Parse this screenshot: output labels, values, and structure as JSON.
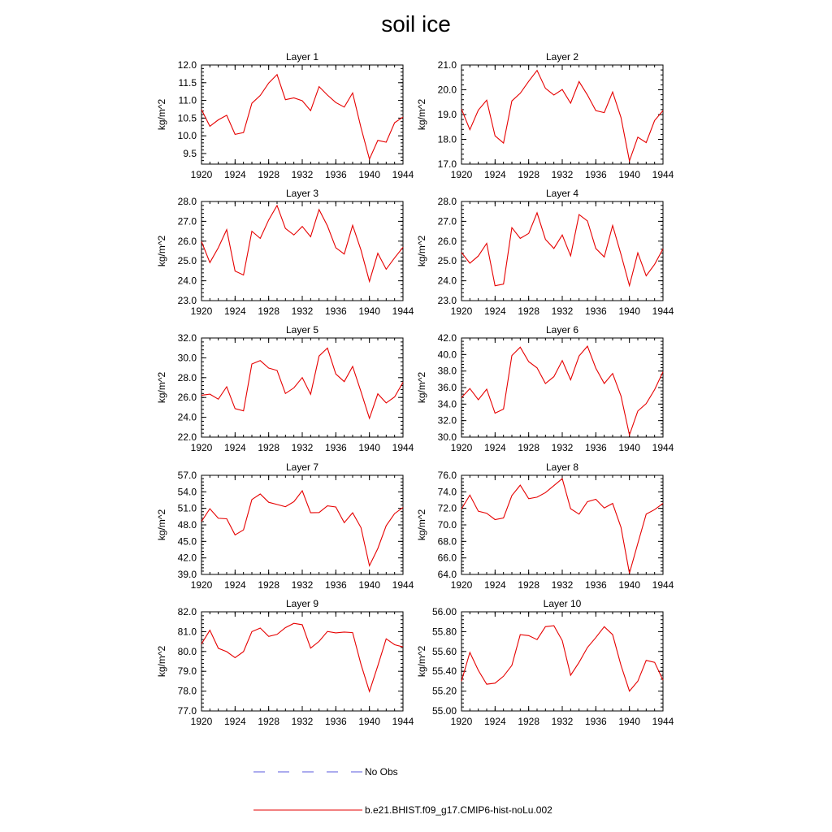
{
  "title": "soil ice",
  "legend": {
    "items": [
      {
        "label": "No Obs",
        "color": "#5a5adc",
        "style": "dashed"
      },
      {
        "label": "b.e21.BHIST.f09_g17.CMIP6-hist-noLu.002",
        "color": "#e60000",
        "style": "solid"
      }
    ]
  },
  "chart_data": [
    {
      "type": "line",
      "title": "Layer 1",
      "xlabel": "",
      "ylabel": "kg/m^2",
      "xlim": [
        1920,
        1944
      ],
      "ylim": [
        9.2,
        12.0
      ],
      "xticks": [
        "1920",
        "1924",
        "1928",
        "1932",
        "1936",
        "1940",
        "1944"
      ],
      "yticks": [
        "9.5",
        "10.0",
        "10.5",
        "11.0",
        "11.5",
        "12.0"
      ],
      "x": [
        1920,
        1921,
        1922,
        1923,
        1924,
        1925,
        1926,
        1927,
        1928,
        1929,
        1930,
        1931,
        1932,
        1933,
        1934,
        1935,
        1936,
        1937,
        1938,
        1939,
        1940,
        1941,
        1942,
        1943,
        1944
      ],
      "series": [
        {
          "name": "b.e21.BHIST.f09_g17.CMIP6-hist-noLu.002",
          "color": "#e60000",
          "values": [
            10.74,
            10.27,
            10.45,
            10.58,
            10.04,
            10.09,
            10.92,
            11.14,
            11.49,
            11.73,
            11.02,
            11.07,
            10.99,
            10.71,
            11.39,
            11.15,
            10.94,
            10.81,
            11.21,
            10.23,
            9.34,
            9.87,
            9.82,
            10.37,
            10.53
          ]
        }
      ]
    },
    {
      "type": "line",
      "title": "Layer 2",
      "xlabel": "",
      "ylabel": "kg/m^2",
      "xlim": [
        1920,
        1944
      ],
      "ylim": [
        17.0,
        21.0
      ],
      "xticks": [
        "1920",
        "1924",
        "1928",
        "1932",
        "1936",
        "1940",
        "1944"
      ],
      "yticks": [
        "17.0",
        "18.0",
        "19.0",
        "20.0",
        "21.0"
      ],
      "x": [
        1920,
        1921,
        1922,
        1923,
        1924,
        1925,
        1926,
        1927,
        1928,
        1929,
        1930,
        1931,
        1932,
        1933,
        1934,
        1935,
        1936,
        1937,
        1938,
        1939,
        1940,
        1941,
        1942,
        1943,
        1944
      ],
      "series": [
        {
          "name": "b.e21.BHIST.f09_g17.CMIP6-hist-noLu.002",
          "color": "#e60000",
          "values": [
            19.22,
            18.39,
            19.18,
            19.58,
            18.14,
            17.85,
            19.55,
            19.86,
            20.34,
            20.78,
            20.06,
            19.79,
            20.01,
            19.46,
            20.33,
            19.79,
            19.16,
            19.08,
            19.91,
            18.88,
            17.13,
            18.09,
            17.87,
            18.76,
            19.16
          ]
        }
      ]
    },
    {
      "type": "line",
      "title": "Layer 3",
      "xlabel": "",
      "ylabel": "kg/m^2",
      "xlim": [
        1920,
        1944
      ],
      "ylim": [
        23.0,
        28.0
      ],
      "xticks": [
        "1920",
        "1924",
        "1928",
        "1932",
        "1936",
        "1940",
        "1944"
      ],
      "yticks": [
        "23.0",
        "24.0",
        "25.0",
        "26.0",
        "27.0",
        "28.0"
      ],
      "x": [
        1920,
        1921,
        1922,
        1923,
        1924,
        1925,
        1926,
        1927,
        1928,
        1929,
        1930,
        1931,
        1932,
        1933,
        1934,
        1935,
        1936,
        1937,
        1938,
        1939,
        1940,
        1941,
        1942,
        1943,
        1944
      ],
      "series": [
        {
          "name": "b.e21.BHIST.f09_g17.CMIP6-hist-noLu.002",
          "color": "#e60000",
          "values": [
            25.98,
            24.92,
            25.67,
            26.58,
            24.49,
            24.29,
            26.5,
            26.14,
            27.07,
            27.8,
            26.64,
            26.31,
            26.74,
            26.22,
            27.59,
            26.77,
            25.67,
            25.35,
            26.8,
            25.55,
            23.97,
            25.39,
            24.58,
            25.16,
            25.69
          ]
        }
      ]
    },
    {
      "type": "line",
      "title": "Layer 4",
      "xlabel": "",
      "ylabel": "kg/m^2",
      "xlim": [
        1920,
        1944
      ],
      "ylim": [
        23.0,
        28.0
      ],
      "xticks": [
        "1920",
        "1924",
        "1928",
        "1932",
        "1936",
        "1940",
        "1944"
      ],
      "yticks": [
        "23.0",
        "24.0",
        "25.0",
        "26.0",
        "27.0",
        "28.0"
      ],
      "x": [
        1920,
        1921,
        1922,
        1923,
        1924,
        1925,
        1926,
        1927,
        1928,
        1929,
        1930,
        1931,
        1932,
        1933,
        1934,
        1935,
        1936,
        1937,
        1938,
        1939,
        1940,
        1941,
        1942,
        1943,
        1944
      ],
      "series": [
        {
          "name": "b.e21.BHIST.f09_g17.CMIP6-hist-noLu.002",
          "color": "#e60000",
          "values": [
            25.43,
            24.89,
            25.25,
            25.89,
            23.75,
            23.83,
            26.68,
            26.14,
            26.39,
            27.43,
            26.09,
            25.63,
            26.31,
            25.26,
            27.34,
            27.02,
            25.63,
            25.2,
            26.79,
            25.33,
            23.76,
            25.41,
            24.25,
            24.83,
            25.61
          ]
        }
      ]
    },
    {
      "type": "line",
      "title": "Layer 5",
      "xlabel": "",
      "ylabel": "kg/m^2",
      "xlim": [
        1920,
        1944
      ],
      "ylim": [
        22.0,
        32.0
      ],
      "xticks": [
        "1920",
        "1924",
        "1928",
        "1932",
        "1936",
        "1940",
        "1944"
      ],
      "yticks": [
        "22.0",
        "24.0",
        "26.0",
        "28.0",
        "30.0",
        "32.0"
      ],
      "x": [
        1920,
        1921,
        1922,
        1923,
        1924,
        1925,
        1926,
        1927,
        1928,
        1929,
        1930,
        1931,
        1932,
        1933,
        1934,
        1935,
        1936,
        1937,
        1938,
        1939,
        1940,
        1941,
        1942,
        1943,
        1944
      ],
      "series": [
        {
          "name": "b.e21.BHIST.f09_g17.CMIP6-hist-noLu.002",
          "color": "#e60000",
          "values": [
            26.23,
            26.34,
            25.83,
            27.08,
            24.88,
            24.65,
            29.38,
            29.72,
            28.97,
            28.73,
            26.4,
            26.97,
            28.01,
            26.32,
            30.18,
            30.98,
            28.37,
            27.6,
            29.13,
            26.58,
            23.89,
            26.37,
            25.45,
            26.06,
            27.53
          ]
        }
      ]
    },
    {
      "type": "line",
      "title": "Layer 6",
      "xlabel": "",
      "ylabel": "kg/m^2",
      "xlim": [
        1920,
        1944
      ],
      "ylim": [
        30.0,
        42.0
      ],
      "xticks": [
        "1920",
        "1924",
        "1928",
        "1932",
        "1936",
        "1940",
        "1944"
      ],
      "yticks": [
        "30.0",
        "32.0",
        "34.0",
        "36.0",
        "38.0",
        "40.0",
        "42.0"
      ],
      "x": [
        1920,
        1921,
        1922,
        1923,
        1924,
        1925,
        1926,
        1927,
        1928,
        1929,
        1930,
        1931,
        1932,
        1933,
        1934,
        1935,
        1936,
        1937,
        1938,
        1939,
        1940,
        1941,
        1942,
        1943,
        1944
      ],
      "series": [
        {
          "name": "b.e21.BHIST.f09_g17.CMIP6-hist-noLu.002",
          "color": "#e60000",
          "values": [
            34.78,
            35.88,
            34.52,
            35.8,
            32.9,
            33.39,
            39.88,
            40.89,
            39.14,
            38.38,
            36.49,
            37.32,
            39.27,
            36.93,
            39.82,
            41.01,
            38.35,
            36.49,
            37.7,
            34.98,
            30.26,
            33.16,
            34.05,
            35.75,
            37.91
          ]
        }
      ]
    },
    {
      "type": "line",
      "title": "Layer 7",
      "xlabel": "",
      "ylabel": "kg/m^2",
      "xlim": [
        1920,
        1944
      ],
      "ylim": [
        39.0,
        57.0
      ],
      "xticks": [
        "1920",
        "1924",
        "1928",
        "1932",
        "1936",
        "1940",
        "1944"
      ],
      "yticks": [
        "39.0",
        "42.0",
        "45.0",
        "48.0",
        "51.0",
        "54.0",
        "57.0"
      ],
      "x": [
        1920,
        1921,
        1922,
        1923,
        1924,
        1925,
        1926,
        1927,
        1928,
        1929,
        1930,
        1931,
        1932,
        1933,
        1934,
        1935,
        1936,
        1937,
        1938,
        1939,
        1940,
        1941,
        1942,
        1943,
        1944
      ],
      "series": [
        {
          "name": "b.e21.BHIST.f09_g17.CMIP6-hist-noLu.002",
          "color": "#e60000",
          "values": [
            48.62,
            50.94,
            49.2,
            49.11,
            46.18,
            47.09,
            52.6,
            53.6,
            52.1,
            51.7,
            51.3,
            52.2,
            54.2,
            50.2,
            50.25,
            51.45,
            51.25,
            48.4,
            50.2,
            47.5,
            40.6,
            43.7,
            47.85,
            50.05,
            51.15
          ]
        }
      ]
    },
    {
      "type": "line",
      "title": "Layer 8",
      "xlabel": "",
      "ylabel": "kg/m^2",
      "xlim": [
        1920,
        1944
      ],
      "ylim": [
        64.0,
        76.0
      ],
      "xticks": [
        "1920",
        "1924",
        "1928",
        "1932",
        "1936",
        "1940",
        "1944"
      ],
      "yticks": [
        "64.0",
        "66.0",
        "68.0",
        "70.0",
        "72.0",
        "74.0",
        "76.0"
      ],
      "x": [
        1920,
        1921,
        1922,
        1923,
        1924,
        1925,
        1926,
        1927,
        1928,
        1929,
        1930,
        1931,
        1932,
        1933,
        1934,
        1935,
        1936,
        1937,
        1938,
        1939,
        1940,
        1941,
        1942,
        1943,
        1944
      ],
      "series": [
        {
          "name": "b.e21.BHIST.f09_g17.CMIP6-hist-noLu.002",
          "color": "#e60000",
          "values": [
            71.93,
            73.6,
            71.65,
            71.41,
            70.64,
            70.84,
            73.55,
            74.81,
            73.17,
            73.35,
            73.9,
            74.75,
            75.6,
            71.96,
            71.3,
            72.8,
            73.1,
            72.05,
            72.6,
            69.7,
            64.15,
            67.75,
            71.3,
            71.85,
            72.6
          ]
        }
      ]
    },
    {
      "type": "line",
      "title": "Layer 9",
      "xlabel": "",
      "ylabel": "kg/m^2",
      "xlim": [
        1920,
        1944
      ],
      "ylim": [
        77.0,
        82.0
      ],
      "xticks": [
        "1920",
        "1924",
        "1928",
        "1932",
        "1936",
        "1940",
        "1944"
      ],
      "yticks": [
        "77.0",
        "78.0",
        "79.0",
        "80.0",
        "81.0",
        "82.0"
      ],
      "x": [
        1920,
        1921,
        1922,
        1923,
        1924,
        1925,
        1926,
        1927,
        1928,
        1929,
        1930,
        1931,
        1932,
        1933,
        1934,
        1935,
        1936,
        1937,
        1938,
        1939,
        1940,
        1941,
        1942,
        1943,
        1944
      ],
      "series": [
        {
          "name": "b.e21.BHIST.f09_g17.CMIP6-hist-noLu.002",
          "color": "#e60000",
          "values": [
            80.38,
            81.07,
            80.16,
            79.99,
            79.69,
            79.99,
            81.0,
            81.18,
            80.76,
            80.86,
            81.2,
            81.42,
            81.35,
            80.17,
            80.51,
            81.01,
            80.94,
            80.98,
            80.95,
            79.35,
            77.98,
            79.28,
            80.64,
            80.34,
            80.23
          ]
        }
      ]
    },
    {
      "type": "line",
      "title": "Layer 10",
      "xlabel": "",
      "ylabel": "kg/m^2",
      "xlim": [
        1920,
        1944
      ],
      "ylim": [
        55.0,
        56.0
      ],
      "xticks": [
        "1920",
        "1924",
        "1928",
        "1932",
        "1936",
        "1940",
        "1944"
      ],
      "yticks": [
        "55.00",
        "55.20",
        "55.40",
        "55.60",
        "55.80",
        "56.00"
      ],
      "x": [
        1920,
        1921,
        1922,
        1923,
        1924,
        1925,
        1926,
        1927,
        1928,
        1929,
        1930,
        1931,
        1932,
        1933,
        1934,
        1935,
        1936,
        1937,
        1938,
        1939,
        1940,
        1941,
        1942,
        1943,
        1944
      ],
      "series": [
        {
          "name": "b.e21.BHIST.f09_g17.CMIP6-hist-noLu.002",
          "color": "#e60000",
          "values": [
            55.3,
            55.59,
            55.41,
            55.27,
            55.28,
            55.35,
            55.46,
            55.77,
            55.76,
            55.72,
            55.85,
            55.86,
            55.71,
            55.36,
            55.49,
            55.64,
            55.74,
            55.85,
            55.77,
            55.46,
            55.2,
            55.3,
            55.51,
            55.49,
            55.31
          ]
        }
      ]
    }
  ]
}
